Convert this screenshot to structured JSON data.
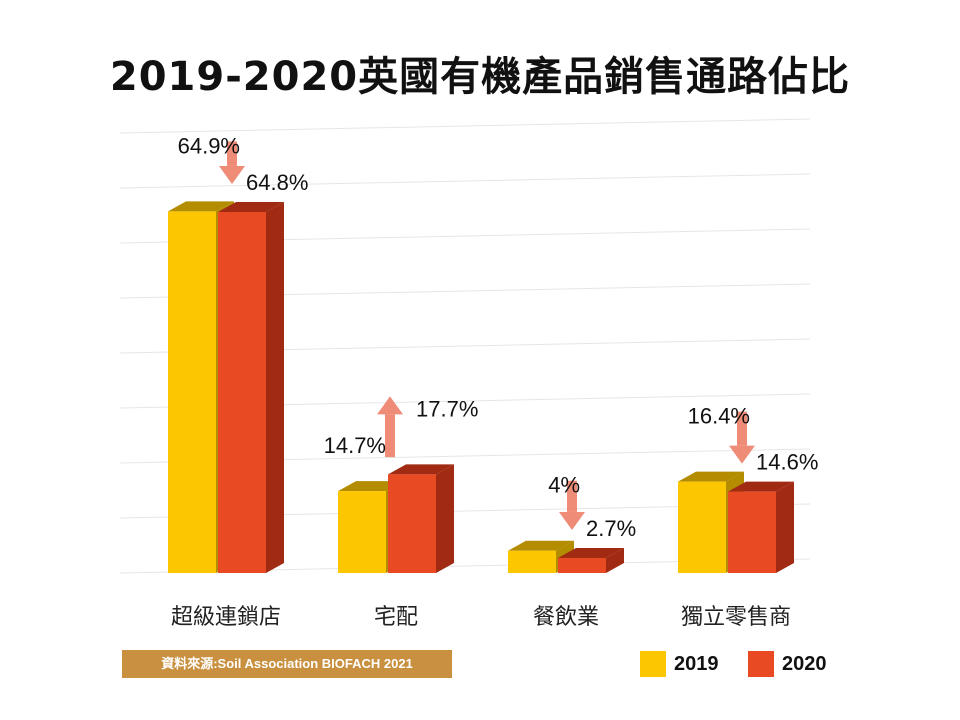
{
  "colors": {
    "y2019_front": "#fcc700",
    "y2019_side": "#b38c00",
    "y2020_front": "#e84a23",
    "y2020_side": "#a02a12",
    "arrow": "#ef8c78",
    "grid": "#e6e6e6",
    "source_bg": "#c9903f"
  },
  "source": "資料來源:Soil Association BIOFACH 2021",
  "chart_data": {
    "type": "bar",
    "title": "2019-2020英國有機產品銷售通路佔比",
    "categories": [
      "超級連鎖店",
      "宅配",
      "餐飲業",
      "獨立零售商"
    ],
    "series": [
      {
        "name": "2019",
        "values": [
          64.9,
          14.7,
          4,
          16.4
        ]
      },
      {
        "name": "2020",
        "values": [
          64.8,
          17.7,
          2.7,
          14.6
        ]
      }
    ],
    "data_labels": {
      "2019": [
        "64.9%",
        "14.7%",
        "4%",
        "16.4%"
      ],
      "2020": [
        "64.8%",
        "17.7%",
        "2.7%",
        "14.6%"
      ]
    },
    "trend": [
      "down",
      "up",
      "down",
      "down"
    ],
    "ylim": [
      0,
      70
    ],
    "grid": true,
    "legend": "bottom-right",
    "xlabel": "",
    "ylabel": ""
  }
}
